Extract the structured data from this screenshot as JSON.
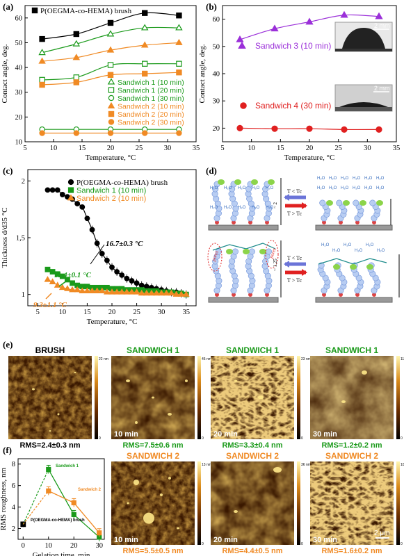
{
  "panel_labels": {
    "a": "(a)",
    "b": "(b)",
    "c": "(c)",
    "d": "(d)",
    "e": "(e)",
    "f": "(f)"
  },
  "colors": {
    "black": "#000000",
    "green": "#1a9a1a",
    "orange": "#f08a24",
    "purple": "#9b30d9",
    "red": "#e02020",
    "brown": "#8a4a10"
  },
  "chart_data": [
    {
      "type": "line",
      "panel": "a",
      "xlabel": "Temperature, °C",
      "ylabel": "Contact angle, deg.",
      "xlim": [
        5,
        35
      ],
      "ylim": [
        10,
        65
      ],
      "xticks": [
        5,
        10,
        15,
        20,
        25,
        30,
        35
      ],
      "yticks": [
        10,
        20,
        30,
        40,
        50,
        60
      ],
      "legend": "top-left and lower-right",
      "x": [
        8,
        14,
        20,
        26,
        32
      ],
      "series": [
        {
          "name": "P(OEGMA-co-HEMA) brush",
          "color": "#000000",
          "marker": "filled-square",
          "values": [
            51.5,
            53.5,
            58,
            62,
            61
          ]
        },
        {
          "name": "Sandwich 1 (10 min)",
          "color": "#1a9a1a",
          "marker": "open-triangle",
          "values": [
            46,
            49.5,
            53.5,
            56,
            56
          ]
        },
        {
          "name": "Sandwich 1 (20 min)",
          "color": "#1a9a1a",
          "marker": "open-square",
          "values": [
            35,
            36,
            41,
            41.5,
            41.5
          ]
        },
        {
          "name": "Sandwich 1 (30 min)",
          "color": "#1a9a1a",
          "marker": "open-circle",
          "values": [
            15,
            15,
            15,
            15,
            15
          ]
        },
        {
          "name": "Sandwich 2 (10 min)",
          "color": "#f08a24",
          "marker": "filled-triangle",
          "values": [
            42.5,
            44,
            47,
            49,
            50
          ]
        },
        {
          "name": "Sandwich 2 (20 min)",
          "color": "#f08a24",
          "marker": "filled-square",
          "values": [
            33,
            34,
            37,
            37.5,
            38
          ]
        },
        {
          "name": "Sandwich 2 (30 min)",
          "color": "#f08a24",
          "marker": "filled-circle",
          "values": [
            13.5,
            13.5,
            13.5,
            13.5,
            13.5
          ]
        }
      ]
    },
    {
      "type": "line",
      "panel": "b",
      "xlabel": "Temperature, °C",
      "ylabel": "Contact angle, deg.",
      "xlim": [
        5,
        35
      ],
      "ylim": [
        15,
        65
      ],
      "xticks": [
        5,
        10,
        15,
        20,
        25,
        30,
        35
      ],
      "yticks": [
        20,
        30,
        40,
        50,
        60
      ],
      "x": [
        8,
        14,
        20,
        26,
        32
      ],
      "series": [
        {
          "name": "Sandwich 3 (10 min)",
          "color": "#9b30d9",
          "marker": "filled-triangle",
          "values": [
            52.5,
            56.5,
            59,
            61.5,
            61
          ]
        },
        {
          "name": "Sandwich 4 (30 min)",
          "color": "#e02020",
          "marker": "filled-circle",
          "values": [
            20,
            19.8,
            19.8,
            19.5,
            19.5
          ]
        }
      ],
      "image_scale_labels": [
        "2 mm",
        "2 mm"
      ]
    },
    {
      "type": "scatter",
      "panel": "c",
      "xlabel": "Temperature, °C",
      "ylabel": "Thickness d/d35 °C",
      "xlim": [
        3,
        37
      ],
      "ylim": [
        0.9,
        2.1
      ],
      "xticks": [
        5,
        10,
        15,
        20,
        25,
        30,
        35
      ],
      "yticks": [
        "1",
        "1,5",
        "2"
      ],
      "legend": "top-right",
      "series": [
        {
          "name": "P(OEGMA-co-HEMA) brush",
          "color": "#000000",
          "x": [
            7,
            8,
            9,
            10,
            11,
            12,
            13,
            14,
            15,
            16,
            17,
            18,
            19,
            20,
            21,
            22,
            23,
            24,
            25,
            26,
            27,
            28,
            29,
            30,
            31,
            32,
            33,
            34,
            35
          ],
          "values": [
            1.92,
            1.92,
            1.92,
            1.88,
            1.86,
            1.84,
            1.8,
            1.77,
            1.67,
            1.57,
            1.45,
            1.36,
            1.3,
            1.24,
            1.2,
            1.17,
            1.14,
            1.12,
            1.1,
            1.08,
            1.07,
            1.06,
            1.05,
            1.04,
            1.03,
            1.02,
            1.02,
            1.01,
            1.0
          ]
        },
        {
          "name": "Sandwich 1 (10 min)",
          "color": "#1a9a1a",
          "x": [
            7,
            8,
            9,
            10,
            11,
            12,
            13,
            14,
            15,
            16,
            17,
            18,
            19,
            20,
            21,
            22,
            23,
            24,
            25,
            26,
            27,
            28,
            29,
            30,
            31,
            32,
            33,
            34,
            35
          ],
          "values": [
            1.22,
            1.2,
            1.18,
            1.16,
            1.13,
            1.1,
            1.08,
            1.07,
            1.07,
            1.06,
            1.06,
            1.06,
            1.06,
            1.05,
            1.05,
            1.05,
            1.04,
            1.04,
            1.04,
            1.04,
            1.03,
            1.03,
            1.03,
            1.02,
            1.02,
            1.02,
            1.01,
            1.01,
            1.0
          ]
        },
        {
          "name": "Sandwich 2 (10 min)",
          "color": "#f08a24",
          "x": [
            7,
            8,
            9,
            10,
            11,
            12,
            13,
            14,
            15,
            16,
            17,
            18,
            19,
            20,
            21,
            22,
            23,
            24,
            25,
            26,
            27,
            28,
            29,
            30,
            31,
            32,
            33,
            34,
            35
          ],
          "values": [
            1.13,
            1.11,
            1.08,
            1.06,
            1.05,
            1.04,
            1.04,
            1.03,
            1.03,
            1.03,
            1.03,
            1.03,
            1.02,
            1.02,
            1.02,
            1.02,
            1.02,
            1.02,
            1.02,
            1.01,
            1.01,
            1.01,
            1.01,
            1.01,
            1.01,
            1.01,
            1.0,
            1.0,
            1.0
          ]
        }
      ],
      "annotations": [
        "16.7±0.3 °C",
        "11.4±0.1 °C",
        "9.3±1.1 °C"
      ]
    },
    {
      "type": "line",
      "panel": "f",
      "xlabel": "Gelation time, min",
      "ylabel": "RMS roughness, nm",
      "xlim": [
        -2,
        32
      ],
      "ylim": [
        1,
        8.5
      ],
      "xticks": [
        0,
        10,
        20,
        30
      ],
      "yticks": [
        2,
        4,
        6,
        8
      ],
      "series": [
        {
          "name": "P(OEGMA-co-HEMA) brush",
          "color": "#000000",
          "x": [
            0
          ],
          "values": [
            2.4
          ]
        },
        {
          "name": "Sandwich 1",
          "color": "#1a9a1a",
          "x": [
            0,
            10,
            20,
            30
          ],
          "values": [
            2.4,
            7.5,
            3.3,
            1.2
          ]
        },
        {
          "name": "Sandwich 2",
          "color": "#f08a24",
          "x": [
            0,
            10,
            20,
            30
          ],
          "values": [
            2.4,
            5.5,
            4.4,
            1.6
          ]
        }
      ]
    }
  ],
  "panel_d": {
    "t_less": "T < Tc",
    "t_greater": "T > Tc",
    "ratio_top": "~ 2",
    "ratio_bottom": "~ 1.25",
    "pores": "pores",
    "water": "H₂O"
  },
  "panel_e": {
    "titles": [
      "BRUSH",
      "SANDWICH 1",
      "SANDWICH 1",
      "SANDWICH 1"
    ],
    "times": [
      "",
      "10 min",
      "20 min",
      "30 min"
    ],
    "rms": [
      "RMS=2.4±0.3 nm",
      "RMS=7.5±0.6 nm",
      "RMS=3.3±0.4 nm",
      "RMS=1.2±0.2 nm"
    ],
    "scale_max": [
      "22 nm",
      "45 nm",
      "23 nm",
      "11 nm"
    ],
    "scale_min": "0",
    "bottom_titles": [
      "SANDWICH 2",
      "SANDWICH 2",
      "SANDWICH 2"
    ],
    "bottom_times": [
      "10 min",
      "20 min",
      "30 min"
    ],
    "bottom_rms": [
      "RMS=5.5±0.5 nm",
      "RMS=4.4±0.5 nm",
      "RMS=1.6±0.2 nm"
    ],
    "bottom_scale_max": [
      "13 nm",
      "36 nm",
      "10 nm"
    ],
    "scalebar": "2 μm"
  },
  "legend_f": {
    "s1": "Sandwich 1",
    "s2": "Sandwich 2",
    "brush": "P(OEGMA-co-HEMA) brush"
  }
}
